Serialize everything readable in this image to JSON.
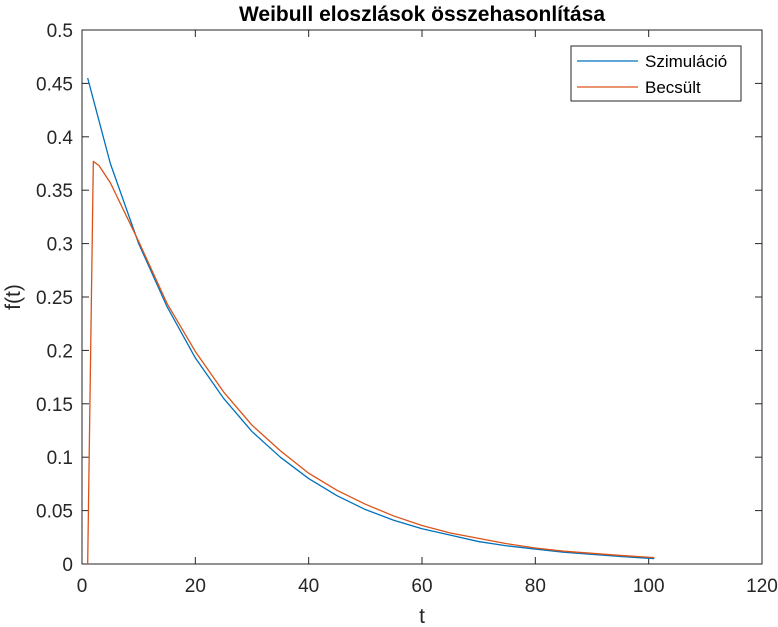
{
  "chart_data": {
    "type": "line",
    "title": "Weibull eloszlások összehasonlítása",
    "xlabel": "t",
    "ylabel": "f(t)",
    "xlim": [
      0,
      120
    ],
    "ylim": [
      0,
      0.5
    ],
    "xticks": [
      0,
      20,
      40,
      60,
      80,
      100,
      120
    ],
    "yticks": [
      0,
      0.05,
      0.1,
      0.15,
      0.2,
      0.25,
      0.3,
      0.35,
      0.4,
      0.45,
      0.5
    ],
    "xtick_labels": [
      "0",
      "20",
      "40",
      "60",
      "80",
      "100",
      "120"
    ],
    "ytick_labels": [
      "0",
      "0.05",
      "0.1",
      "0.15",
      "0.2",
      "0.25",
      "0.3",
      "0.35",
      "0.4",
      "0.45",
      "0.5"
    ],
    "grid": false,
    "legend_position": "top-right",
    "series": [
      {
        "name": "Szimuláció",
        "color": "#0072BD",
        "x": [
          1,
          5,
          10,
          15,
          20,
          25,
          30,
          35,
          40,
          45,
          50,
          55,
          60,
          65,
          70,
          75,
          80,
          85,
          90,
          95,
          101
        ],
        "y": [
          0.455,
          0.375,
          0.3,
          0.241,
          0.193,
          0.155,
          0.124,
          0.1,
          0.08,
          0.064,
          0.051,
          0.041,
          0.033,
          0.027,
          0.021,
          0.017,
          0.014,
          0.011,
          0.009,
          0.007,
          0.005
        ]
      },
      {
        "name": "Becsült",
        "color": "#D95319",
        "x": [
          1,
          2,
          3,
          5,
          10,
          15,
          20,
          25,
          30,
          35,
          40,
          45,
          50,
          55,
          60,
          65,
          70,
          75,
          80,
          85,
          90,
          95,
          101
        ],
        "y": [
          0.0,
          0.377,
          0.373,
          0.357,
          0.302,
          0.244,
          0.199,
          0.161,
          0.13,
          0.106,
          0.085,
          0.069,
          0.056,
          0.045,
          0.036,
          0.029,
          0.024,
          0.019,
          0.015,
          0.012,
          0.01,
          0.008,
          0.006
        ]
      }
    ]
  }
}
